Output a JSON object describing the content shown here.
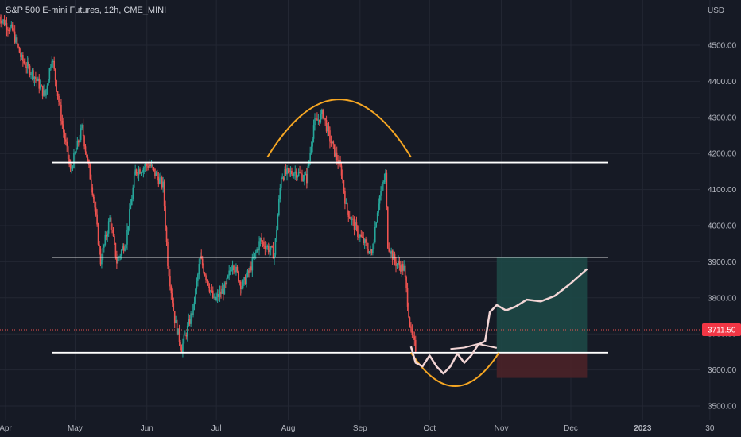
{
  "chart_data": {
    "type": "candlestick",
    "title": "S&P 500 E-mini Futures, 12h, CME_MINI",
    "currency": "USD",
    "current_price": "3711.50",
    "ylim": [
      3480,
      4600
    ],
    "y_ticks": [
      "4500.00",
      "4400.00",
      "4300.00",
      "4200.00",
      "4100.00",
      "4000.00",
      "3900.00",
      "3800.00",
      "3700.00",
      "3600.00",
      "3500.00"
    ],
    "x_ticks": [
      {
        "label": "Apr",
        "date": "2022-04-01",
        "bold": false
      },
      {
        "label": "May",
        "date": "2022-05-01",
        "bold": false
      },
      {
        "label": "Jun",
        "date": "2022-06-01",
        "bold": false
      },
      {
        "label": "Jul",
        "date": "2022-07-01",
        "bold": false
      },
      {
        "label": "Aug",
        "date": "2022-08-01",
        "bold": false
      },
      {
        "label": "Sep",
        "date": "2022-09-01",
        "bold": false
      },
      {
        "label": "Oct",
        "date": "2022-10-01",
        "bold": false
      },
      {
        "label": "Nov",
        "date": "2022-11-01",
        "bold": false
      },
      {
        "label": "Dec",
        "date": "2022-12-01",
        "bold": false
      },
      {
        "label": "2023",
        "date": "2023-01-01",
        "bold": true
      },
      {
        "label": "30",
        "date": "2023-01-30",
        "bold": false
      }
    ],
    "price_path": [
      [
        "2022-03-29",
        4580
      ],
      [
        "2022-04-04",
        4540
      ],
      [
        "2022-04-08",
        4460
      ],
      [
        "2022-04-13",
        4420
      ],
      [
        "2022-04-18",
        4360
      ],
      [
        "2022-04-21",
        4470
      ],
      [
        "2022-04-26",
        4260
      ],
      [
        "2022-04-29",
        4150
      ],
      [
        "2022-05-04",
        4270
      ],
      [
        "2022-05-09",
        4080
      ],
      [
        "2022-05-12",
        3900
      ],
      [
        "2022-05-16",
        4020
      ],
      [
        "2022-05-19",
        3900
      ],
      [
        "2022-05-23",
        3960
      ],
      [
        "2022-05-27",
        4150
      ],
      [
        "2022-06-02",
        4170
      ],
      [
        "2022-06-08",
        4110
      ],
      [
        "2022-06-10",
        3900
      ],
      [
        "2022-06-13",
        3740
      ],
      [
        "2022-06-16",
        3660
      ],
      [
        "2022-06-21",
        3770
      ],
      [
        "2022-06-24",
        3910
      ],
      [
        "2022-06-30",
        3790
      ],
      [
        "2022-07-05",
        3830
      ],
      [
        "2022-07-08",
        3900
      ],
      [
        "2022-07-12",
        3830
      ],
      [
        "2022-07-15",
        3870
      ],
      [
        "2022-07-20",
        3960
      ],
      [
        "2022-07-26",
        3920
      ],
      [
        "2022-07-29",
        4140
      ],
      [
        "2022-08-04",
        4150
      ],
      [
        "2022-08-09",
        4130
      ],
      [
        "2022-08-12",
        4280
      ],
      [
        "2022-08-16",
        4310
      ],
      [
        "2022-08-19",
        4240
      ],
      [
        "2022-08-24",
        4150
      ],
      [
        "2022-08-26",
        4050
      ],
      [
        "2022-08-31",
        3980
      ],
      [
        "2022-09-06",
        3920
      ],
      [
        "2022-09-09",
        4070
      ],
      [
        "2022-09-12",
        4140
      ],
      [
        "2022-09-13",
        3950
      ],
      [
        "2022-09-16",
        3900
      ],
      [
        "2022-09-20",
        3880
      ],
      [
        "2022-09-23",
        3700
      ],
      [
        "2022-09-25",
        3660
      ]
    ],
    "horizontal_levels": [
      4175,
      3912,
      3648
    ],
    "projection": {
      "target_zone": {
        "x0": "2022-10-30",
        "x1": "2022-12-08",
        "y0": 3648,
        "y1": 3912
      },
      "stop_zone": {
        "x0": "2022-10-30",
        "x1": "2022-12-08",
        "y0": 3578,
        "y1": 3648
      }
    },
    "annotations": {
      "top_arc": {
        "x0": "2022-07-23",
        "x1": "2022-09-23",
        "peak_y": 4350,
        "base_y": 4190
      },
      "bottom_arc": {
        "x0": "2022-09-23",
        "x1": "2022-10-31",
        "trough_y": 3555,
        "base_y": 3648
      }
    },
    "colors": {
      "background": "#161a25",
      "grid": "#232733",
      "up": "#26a69a",
      "down": "#ef5350",
      "level_line": "#ffffff",
      "arc": "#f5a623",
      "drawing": "#f2d5d5",
      "target_fill": "#1d4846",
      "stop_fill": "#4a2228",
      "price_label_bg": "#f23645"
    }
  }
}
